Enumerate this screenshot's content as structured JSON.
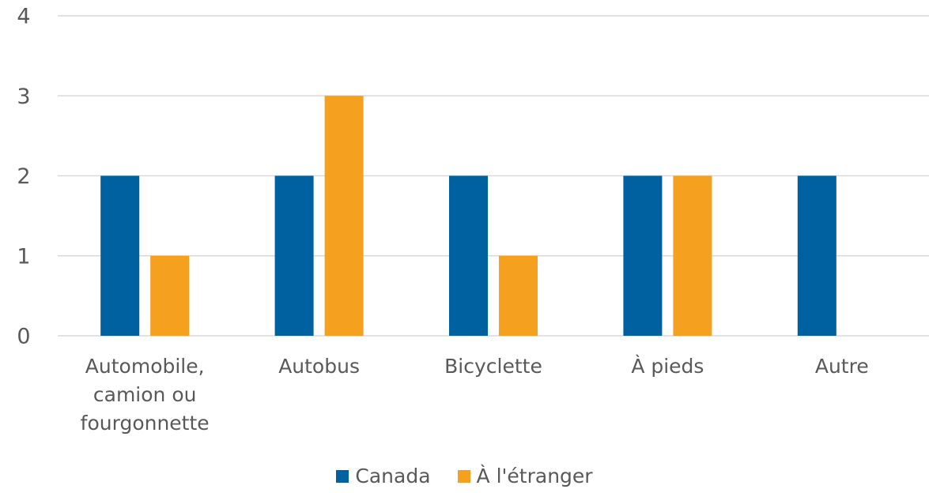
{
  "chart_data": {
    "type": "bar",
    "categories": [
      "Automobile, camion ou fourgonnette",
      "Autobus",
      "Bicyclette",
      "À pieds",
      "Autre"
    ],
    "series": [
      {
        "name": "Canada",
        "color": "#0061a0",
        "values": [
          2,
          2,
          2,
          2,
          2
        ]
      },
      {
        "name": "À l'étranger",
        "color": "#f5a01e",
        "values": [
          1,
          3,
          1,
          2,
          0
        ]
      }
    ],
    "ylim": [
      0,
      4
    ],
    "yticks": [
      0,
      1,
      2,
      3,
      4
    ],
    "grid": true,
    "legend": "bottom"
  }
}
